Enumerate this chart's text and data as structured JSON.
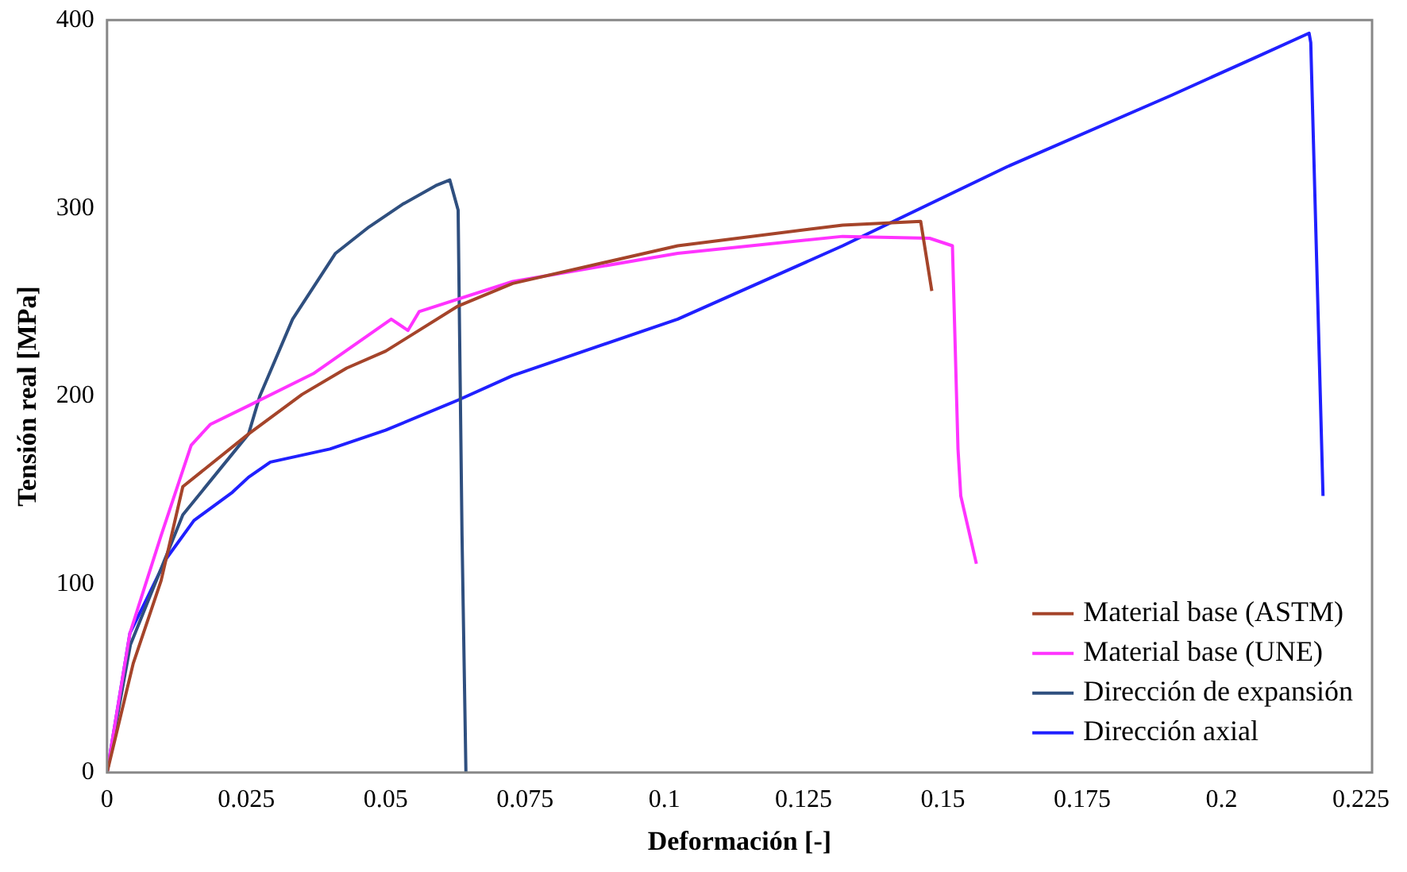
{
  "chart_data": {
    "type": "line",
    "xlabel": "Deformación [-]",
    "ylabel": "Tensión real [MPa]",
    "xlim": [
      0,
      0.227
    ],
    "xticks": [
      0,
      0.025,
      0.05,
      0.075,
      0.1,
      0.125,
      0.15,
      0.175,
      0.2,
      0.225
    ],
    "ylim": [
      0,
      400
    ],
    "yticks": [
      0,
      100,
      200,
      300,
      400
    ],
    "grid": false,
    "legend": "bottom right",
    "marker": "none",
    "line_style": "solid",
    "series": [
      {
        "name": "Material base (ASTM)",
        "color": "#a5442a",
        "x": [
          0,
          0.0047,
          0.0097,
          0.0136,
          0.0254,
          0.035,
          0.043,
          0.05,
          0.063,
          0.0728,
          0.1024,
          0.132,
          0.146,
          0.148
        ],
        "values": [
          0,
          58,
          102,
          152,
          180,
          201,
          215,
          224,
          248,
          260,
          280,
          291,
          293,
          256
        ]
      },
      {
        "name": "Material base (UNE)",
        "color": "#ff33ff",
        "x": [
          0,
          0.0041,
          0.0097,
          0.0151,
          0.0185,
          0.0254,
          0.037,
          0.051,
          0.054,
          0.056,
          0.0728,
          0.1024,
          0.132,
          0.1476,
          0.1517,
          0.1527,
          0.1532,
          0.156
        ],
        "values": [
          0,
          74,
          126,
          174,
          185,
          195,
          212,
          241,
          235,
          245,
          261,
          276,
          285,
          284,
          280,
          172,
          147,
          111
        ]
      },
      {
        "name": "Dirección de expansión",
        "color": "#2f4f7f",
        "x": [
          0,
          0.0042,
          0.0136,
          0.0254,
          0.0274,
          0.0333,
          0.041,
          0.047,
          0.053,
          0.059,
          0.0615,
          0.063,
          0.0637,
          0.0644
        ],
        "values": [
          0,
          68,
          137,
          180,
          200,
          241,
          276,
          290,
          302,
          312,
          315,
          299,
          126,
          0
        ]
      },
      {
        "name": "Dirección axial",
        "color": "#2020ff",
        "x": [
          0,
          0.0041,
          0.0107,
          0.0156,
          0.0225,
          0.0254,
          0.0293,
          0.04,
          0.05,
          0.063,
          0.0728,
          0.1024,
          0.132,
          0.1615,
          0.191,
          0.206,
          0.2157,
          0.216,
          0.2182
        ],
        "values": [
          0,
          74,
          114,
          134,
          149,
          157,
          165,
          172,
          182,
          198,
          211,
          241,
          280,
          322,
          360,
          380,
          393,
          388,
          147
        ]
      }
    ]
  }
}
